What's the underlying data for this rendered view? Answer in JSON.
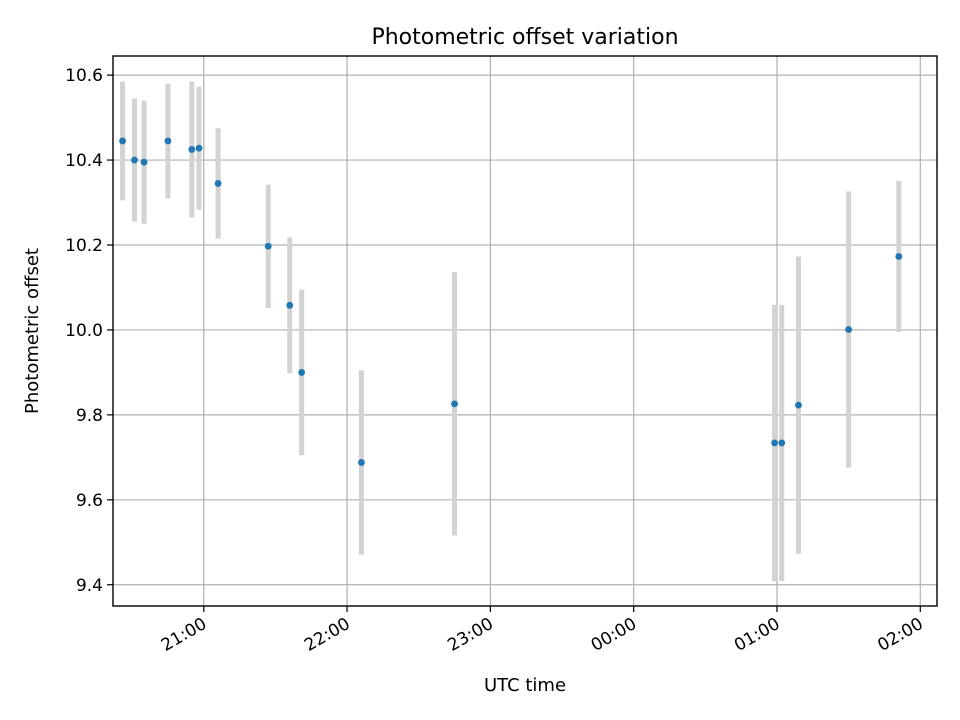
{
  "chart_data": {
    "type": "scatter",
    "title": "Photometric offset variation",
    "xlabel": "UTC time",
    "ylabel": "Photometric offset",
    "x_unit": "hours, 20:00 to 02:00 next day",
    "xlim": [
      "20:22",
      "02:07"
    ],
    "ylim": [
      9.35,
      10.645
    ],
    "grid": true,
    "x_ticks": [
      {
        "time": "21:00",
        "label": "21:00"
      },
      {
        "time": "22:00",
        "label": "22:00"
      },
      {
        "time": "23:00",
        "label": "23:00"
      },
      {
        "time": "00:00",
        "label": "00:00"
      },
      {
        "time": "01:00",
        "label": "01:00"
      },
      {
        "time": "02:00",
        "label": "02:00"
      }
    ],
    "y_ticks": [
      {
        "value": 9.4,
        "label": "9.4"
      },
      {
        "value": 9.6,
        "label": "9.6"
      },
      {
        "value": 9.8,
        "label": "9.8"
      },
      {
        "value": 10.0,
        "label": "10.0"
      },
      {
        "value": 10.2,
        "label": "10.2"
      },
      {
        "value": 10.4,
        "label": "10.4"
      },
      {
        "value": 10.6,
        "label": "10.6"
      }
    ],
    "point_color": "#1f77b4",
    "errorbar_color": "#d3d3d3",
    "points": [
      {
        "time": "20:26",
        "y": 10.445,
        "err": 0.14
      },
      {
        "time": "20:31",
        "y": 10.4,
        "err": 0.145
      },
      {
        "time": "20:35",
        "y": 10.395,
        "err": 0.145
      },
      {
        "time": "20:45",
        "y": 10.445,
        "err": 0.135
      },
      {
        "time": "20:55",
        "y": 10.425,
        "err": 0.16
      },
      {
        "time": "20:58",
        "y": 10.428,
        "err": 0.145
      },
      {
        "time": "21:06",
        "y": 10.345,
        "err": 0.13
      },
      {
        "time": "21:27",
        "y": 10.197,
        "err": 0.145
      },
      {
        "time": "21:36",
        "y": 10.058,
        "err": 0.16
      },
      {
        "time": "21:41",
        "y": 9.9,
        "err": 0.195
      },
      {
        "time": "22:06",
        "y": 9.688,
        "err": 0.217
      },
      {
        "time": "22:45",
        "y": 9.826,
        "err": 0.31
      },
      {
        "time": "00:59",
        "y": 9.734,
        "err": 0.325
      },
      {
        "time": "01:02",
        "y": 9.734,
        "err": 0.325
      },
      {
        "time": "01:09",
        "y": 9.823,
        "err": 0.35
      },
      {
        "time": "01:30",
        "y": 10.001,
        "err": 0.325
      },
      {
        "time": "01:51",
        "y": 10.173,
        "err": 0.178
      }
    ]
  }
}
